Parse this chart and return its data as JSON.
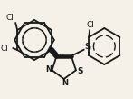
{
  "bg_color": "#f5f0e8",
  "bond_color": "#1a1a1a",
  "text_color": "#1a1a1a",
  "bond_width": 1.3,
  "figsize": [
    1.47,
    1.09
  ],
  "dpi": 100,
  "xlim": [
    0,
    147
  ],
  "ylim": [
    0,
    109
  ]
}
